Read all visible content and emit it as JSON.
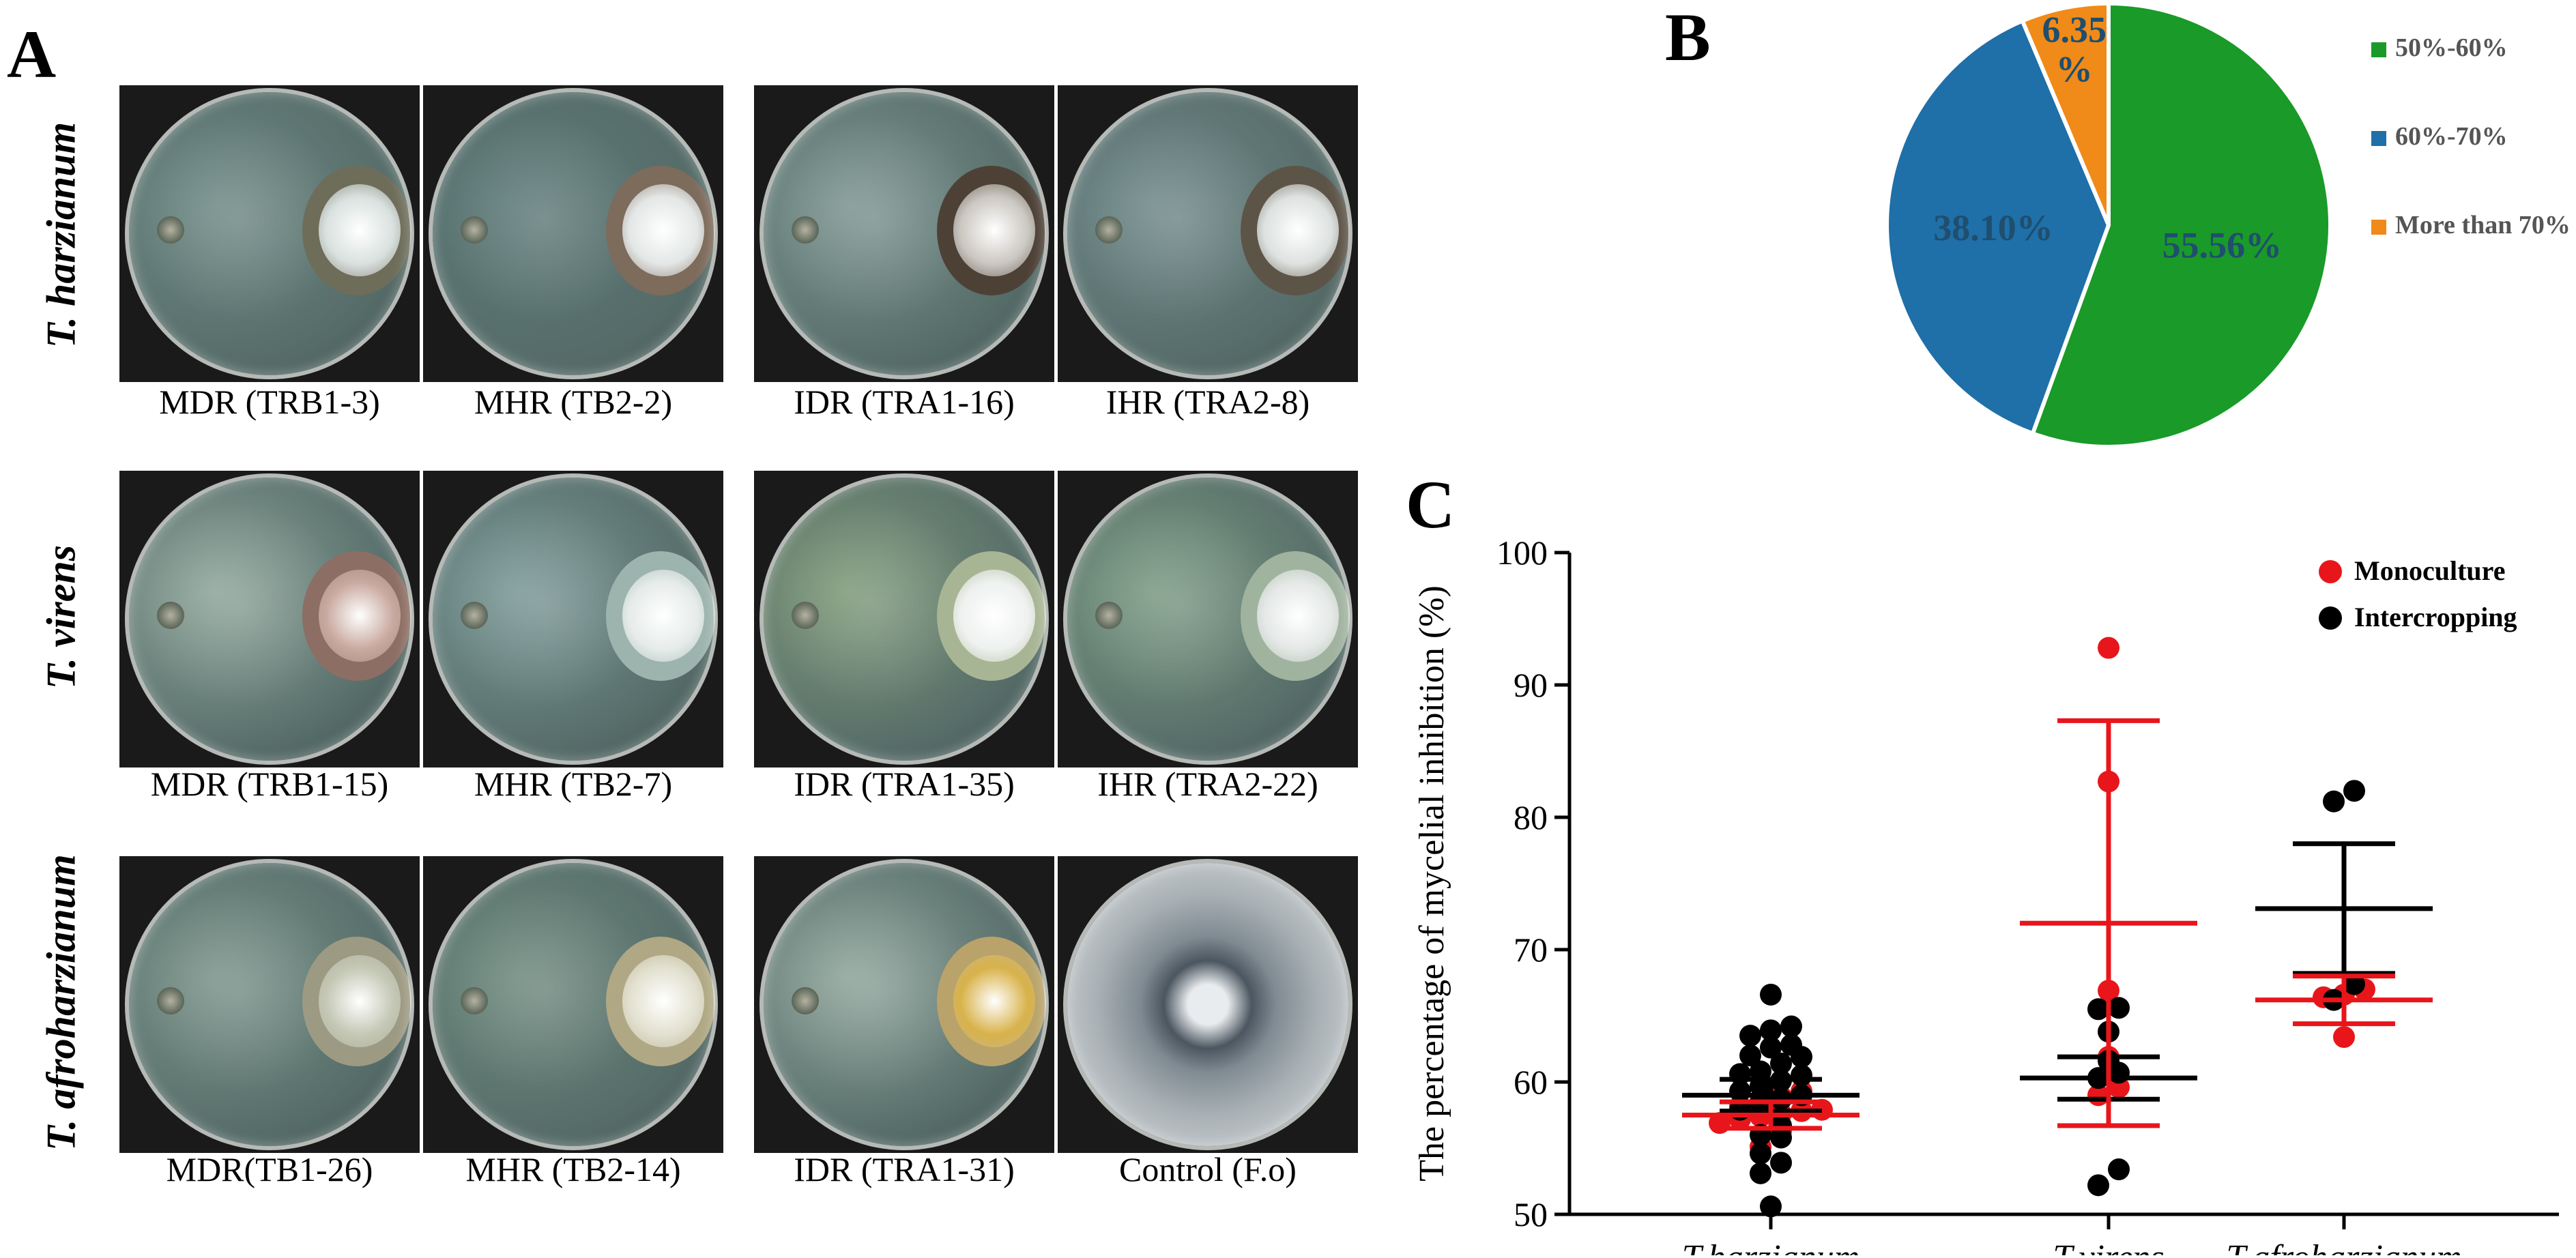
{
  "panels": {
    "a": "A",
    "b": "B",
    "c": "C"
  },
  "panel_a": {
    "row_labels": [
      "T. harzianum",
      "T. virens",
      "T. afroharzianum"
    ],
    "plates": [
      {
        "caption": "MDR (TRB1-3)",
        "medium": "#6f8a86",
        "colony": "#d9e1df",
        "ring": "#6e6d5a"
      },
      {
        "caption": "MHR (TB2-2)",
        "medium": "#5e7b79",
        "colony": "#e3e7e6",
        "ring": "#7d6b5c"
      },
      {
        "caption": "IDR (TRA1-16)",
        "medium": "#7c9590",
        "colony": "#cbc7c1",
        "ring": "#4d4136"
      },
      {
        "caption": "IHR (TRA2-8)",
        "medium": "#70898a",
        "colony": "#dde1df",
        "ring": "#5d5448"
      },
      {
        "caption": "MDR (TRB1-15)",
        "medium": "#8ea59a",
        "colony": "#c9a9a0",
        "ring": "#8d6e64"
      },
      {
        "caption": "MHR (TB2-7)",
        "medium": "#7a9896",
        "colony": "#e6ecea",
        "ring": "#9db3ad"
      },
      {
        "caption": "IDR (TRA1-35)",
        "medium": "#7f9a7a",
        "colony": "#eef1ef",
        "ring": "#a8b594"
      },
      {
        "caption": "IHR (TRA2-22)",
        "medium": "#7a9a82",
        "colony": "#e4e8e6",
        "ring": "#a0b39f"
      },
      {
        "caption": "MDR(TB1-26)",
        "medium": "#7a938a",
        "colony": "#c4c8b5",
        "ring": "#9d9a83"
      },
      {
        "caption": "MHR (TB2-14)",
        "medium": "#6e8a7e",
        "colony": "#e2e0cf",
        "ring": "#b0a884"
      },
      {
        "caption": "IDR (TRA1-31)",
        "medium": "#8ea49a",
        "colony": "#d8b24a",
        "ring": "#b9a36a"
      },
      {
        "caption": "Control (F.o)",
        "medium": "#a8b0b4",
        "colony": "#e9ecee",
        "ring": "#4b5660"
      }
    ]
  },
  "chart_data": [
    {
      "type": "pie",
      "title": "",
      "slices": [
        {
          "label": "50%-60%",
          "value": 55.56,
          "display": "55.56%",
          "color": "#1a9a28"
        },
        {
          "label": "60%-70%",
          "value": 38.1,
          "display": "38.10%",
          "color": "#1f6fa8"
        },
        {
          "label": "More than 70%",
          "value": 6.35,
          "display_lines": [
            "6.35",
            "%"
          ],
          "color": "#f08a18"
        }
      ],
      "label_color": "#1f4e6e",
      "legend_placement": "right"
    },
    {
      "type": "scatter",
      "ylabel": "The percentage of mycelial inhibition (%)",
      "ylim": [
        50,
        100
      ],
      "yticks": [
        50,
        60,
        70,
        80,
        90,
        100
      ],
      "categories": [
        "T.harzianum",
        "T.virens",
        "T.afroharzianum"
      ],
      "legend_placement": "top-right",
      "series": [
        {
          "name": "Monoculture",
          "color": "#e8161b",
          "mean": [
            57.5,
            72.0,
            66.2
          ],
          "sd": [
            1.0,
            15.3,
            1.8
          ],
          "points": [
            [
              0,
              57.6
            ],
            [
              0,
              58.2
            ],
            [
              0,
              57.2
            ],
            [
              0,
              56.9
            ],
            [
              0,
              57.8
            ],
            [
              0,
              58.6
            ],
            [
              0,
              57.4
            ],
            [
              0,
              56.3
            ],
            [
              0,
              58.9
            ],
            [
              0,
              55.1
            ],
            [
              0,
              59.3
            ],
            [
              0,
              57.9
            ],
            [
              1,
              92.8
            ],
            [
              1,
              82.7
            ],
            [
              1,
              66.9
            ],
            [
              1,
              61.9
            ],
            [
              1,
              59.6
            ],
            [
              1,
              59.0
            ],
            [
              2,
              63.4
            ],
            [
              2,
              66.6
            ],
            [
              2,
              67.0
            ],
            [
              2,
              66.4
            ]
          ]
        },
        {
          "name": "Intercropping",
          "color": "#000000",
          "mean": [
            59.0,
            60.3,
            73.1
          ],
          "sd": [
            1.2,
            1.6,
            4.9
          ],
          "points": [
            [
              0,
              66.6
            ],
            [
              0,
              64.2
            ],
            [
              0,
              63.9
            ],
            [
              0,
              63.5
            ],
            [
              0,
              62.8
            ],
            [
              0,
              62.6
            ],
            [
              0,
              62.0
            ],
            [
              0,
              61.9
            ],
            [
              0,
              61.4
            ],
            [
              0,
              60.8
            ],
            [
              0,
              60.6
            ],
            [
              0,
              60.5
            ],
            [
              0,
              60.1
            ],
            [
              0,
              59.7
            ],
            [
              0,
              59.3
            ],
            [
              0,
              59.0
            ],
            [
              0,
              58.7
            ],
            [
              0,
              58.4
            ],
            [
              0,
              57.9
            ],
            [
              0,
              56.7
            ],
            [
              0,
              56.0
            ],
            [
              0,
              55.8
            ],
            [
              0,
              54.6
            ],
            [
              0,
              53.9
            ],
            [
              0,
              53.1
            ],
            [
              0,
              50.6
            ],
            [
              1,
              65.6
            ],
            [
              1,
              65.5
            ],
            [
              1,
              63.8
            ],
            [
              1,
              61.6
            ],
            [
              1,
              60.7
            ],
            [
              1,
              60.3
            ],
            [
              1,
              53.4
            ],
            [
              1,
              52.2
            ],
            [
              2,
              82.0
            ],
            [
              2,
              81.2
            ],
            [
              2,
              67.4
            ],
            [
              2,
              66.2
            ]
          ]
        }
      ]
    }
  ]
}
